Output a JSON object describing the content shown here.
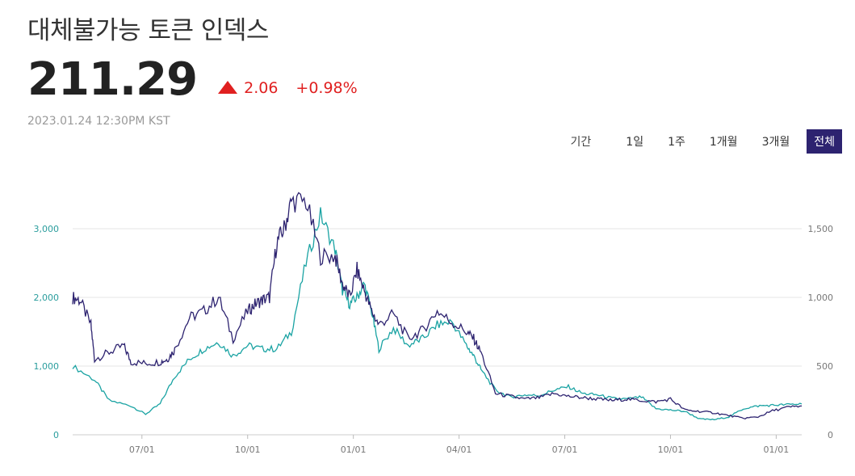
{
  "header": {
    "title": "대체불가능 토큰 인덱스",
    "price": "211.29",
    "change_abs": "2.06",
    "change_pct": "+0.98%",
    "timestamp": "2023.01.24 12:30PM KST",
    "up_icon": "triangle-up-icon"
  },
  "periods": {
    "label": "기간",
    "options": [
      "1일",
      "1주",
      "1개월",
      "3개월",
      "전체"
    ],
    "selected": "전체"
  },
  "colors": {
    "up": "#e02020",
    "selected_bg": "#2d2370",
    "left_axis": "#2a9d9d",
    "right_axis": "#777777",
    "grid": "#e6e6e6",
    "series_left": "#1aa3a3",
    "series_right": "#2d2370"
  },
  "chart_data": {
    "type": "line",
    "x_ticks": [
      "07/01",
      "10/01",
      "01/01",
      "04/01",
      "07/01",
      "10/01",
      "01/01"
    ],
    "y_left_ticks": [
      "0",
      "1,000",
      "2,000",
      "3,000"
    ],
    "y_right_ticks": [
      "0",
      "500",
      "1,000",
      "1,500"
    ],
    "y_left_range": [
      0,
      3000
    ],
    "y_right_range": [
      0,
      1500
    ],
    "grid": true,
    "series": [
      {
        "axis": "left",
        "color": "#1aa3a3",
        "x": [
          0,
          0.03,
          0.05,
          0.08,
          0.1,
          0.12,
          0.14,
          0.16,
          0.18,
          0.2,
          0.22,
          0.24,
          0.26,
          0.28,
          0.3,
          0.32,
          0.34,
          0.36,
          0.37,
          0.38,
          0.39,
          0.4,
          0.41,
          0.42,
          0.44,
          0.46,
          0.48,
          0.5,
          0.52,
          0.54,
          0.55,
          0.56,
          0.58,
          0.6,
          0.62,
          0.64,
          0.66,
          0.68,
          0.7,
          0.72,
          0.74,
          0.76,
          0.78,
          0.8,
          0.82,
          0.84,
          0.86,
          0.88,
          0.9,
          0.92,
          0.94,
          0.96,
          0.98,
          1.0
        ],
        "values": [
          1000,
          800,
          500,
          420,
          300,
          450,
          850,
          1100,
          1250,
          1350,
          1150,
          1300,
          1250,
          1250,
          1500,
          2500,
          3200,
          2700,
          2100,
          1900,
          2000,
          2200,
          1800,
          1250,
          1550,
          1300,
          1400,
          1600,
          1650,
          1300,
          1150,
          950,
          650,
          550,
          580,
          570,
          650,
          700,
          600,
          580,
          530,
          520,
          550,
          380,
          360,
          340,
          230,
          220,
          260,
          380,
          420,
          430,
          440,
          450
        ]
      },
      {
        "axis": "right",
        "color": "#2d2370",
        "x": [
          0,
          0.01,
          0.025,
          0.03,
          0.05,
          0.07,
          0.08,
          0.1,
          0.12,
          0.13,
          0.14,
          0.16,
          0.18,
          0.2,
          0.22,
          0.24,
          0.25,
          0.26,
          0.27,
          0.28,
          0.29,
          0.3,
          0.32,
          0.34,
          0.36,
          0.37,
          0.38,
          0.39,
          0.4,
          0.41,
          0.42,
          0.44,
          0.46,
          0.48,
          0.5,
          0.52,
          0.54,
          0.55,
          0.56,
          0.58,
          0.6,
          0.62,
          0.64,
          0.66,
          0.68,
          0.7,
          0.72,
          0.74,
          0.76,
          0.78,
          0.8,
          0.82,
          0.84,
          0.86,
          0.88,
          0.9,
          0.92,
          0.94,
          0.96,
          0.98,
          1.0
        ],
        "values": [
          1000,
          980,
          800,
          550,
          600,
          650,
          530,
          520,
          530,
          550,
          620,
          850,
          900,
          1000,
          700,
          900,
          950,
          980,
          1000,
          1400,
          1500,
          1700,
          1700,
          1300,
          1300,
          1100,
          1000,
          1200,
          1050,
          900,
          800,
          880,
          700,
          760,
          900,
          820,
          750,
          700,
          600,
          300,
          280,
          260,
          270,
          300,
          280,
          270,
          260,
          250,
          260,
          250,
          240,
          260,
          180,
          170,
          160,
          140,
          120,
          130,
          175,
          200,
          210
        ]
      }
    ]
  }
}
